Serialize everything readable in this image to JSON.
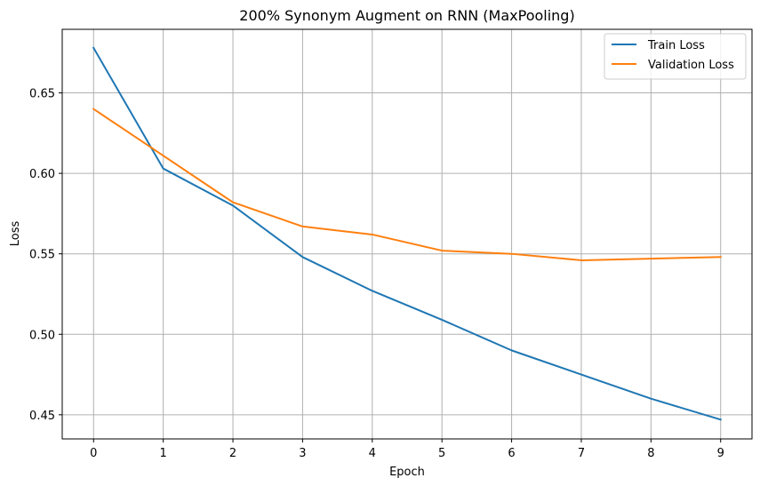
{
  "chart_data": {
    "type": "line",
    "title": "200% Synonym Augment on RNN (MaxPooling)",
    "xlabel": "Epoch",
    "ylabel": "Loss",
    "x": [
      0,
      1,
      2,
      3,
      4,
      5,
      6,
      7,
      8,
      9
    ],
    "xlim": [
      -0.45,
      9.45
    ],
    "ylim": [
      0.435,
      0.6895
    ],
    "xticks": [
      0,
      1,
      2,
      3,
      4,
      5,
      6,
      7,
      8,
      9
    ],
    "yticks": [
      0.45,
      0.5,
      0.55,
      0.6,
      0.65
    ],
    "ytick_labels": [
      "0.45",
      "0.50",
      "0.55",
      "0.60",
      "0.65"
    ],
    "grid": true,
    "legend": "top-right",
    "series": [
      {
        "name": "Train Loss",
        "color": "#1f77b4",
        "values": [
          0.678,
          0.603,
          0.58,
          0.548,
          0.527,
          0.509,
          0.49,
          0.475,
          0.46,
          0.447
        ]
      },
      {
        "name": "Validation Loss",
        "color": "#ff7f0e",
        "values": [
          0.64,
          0.611,
          0.582,
          0.567,
          0.562,
          0.552,
          0.55,
          0.546,
          0.547,
          0.548
        ]
      }
    ]
  }
}
